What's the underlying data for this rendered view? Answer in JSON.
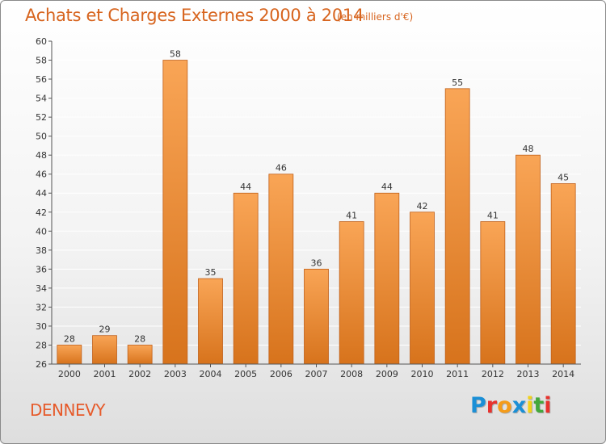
{
  "header": {
    "title": "Achats et Charges Externes 2000 à 2014",
    "subtitle": "(en milliers d'€)"
  },
  "footer": {
    "commune": "DENNEVY",
    "logo_text": "Proxiti",
    "logo_colors": [
      "#1a8fd6",
      "#e8322d",
      "#f59c1a",
      "#1a8fd6",
      "#f2d21a",
      "#44a83c",
      "#e8322d"
    ]
  },
  "colors": {
    "bar_top": "#f9a556",
    "bar_bottom": "#d7731c",
    "bar_edge": "#c0601a",
    "axis": "#555555",
    "grid": "#ffffff",
    "text": "#333333"
  },
  "chart_data": {
    "type": "bar",
    "categories": [
      "2000",
      "2001",
      "2002",
      "2003",
      "2004",
      "2005",
      "2006",
      "2007",
      "2008",
      "2009",
      "2010",
      "2011",
      "2012",
      "2013",
      "2014"
    ],
    "values": [
      28,
      29,
      28,
      58,
      35,
      44,
      46,
      36,
      41,
      44,
      42,
      55,
      41,
      48,
      45
    ],
    "ylim": [
      26,
      60
    ],
    "ytick_step": 2,
    "grid": true,
    "data_labels": true
  }
}
